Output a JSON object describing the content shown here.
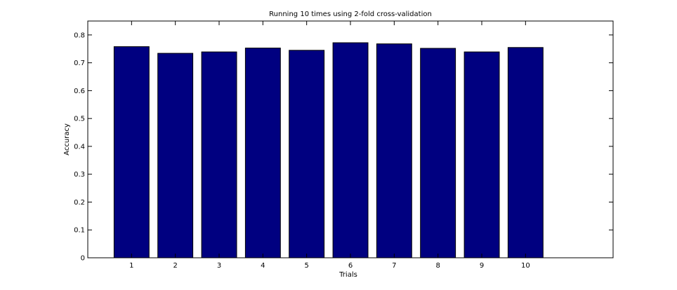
{
  "chart_data": {
    "type": "bar",
    "title": "Running 10 times using 2-fold cross-validation",
    "xlabel": "Trials",
    "ylabel": "Accuracy",
    "categories": [
      "1",
      "2",
      "3",
      "4",
      "5",
      "6",
      "7",
      "8",
      "9",
      "10"
    ],
    "values": [
      0.758,
      0.734,
      0.739,
      0.753,
      0.745,
      0.772,
      0.768,
      0.752,
      0.739,
      0.755
    ],
    "ylim": [
      0,
      0.85
    ],
    "yticks": [
      0,
      0.1,
      0.2,
      0.3,
      0.4,
      0.5,
      0.6,
      0.7,
      0.8
    ],
    "ytick_labels": [
      "0",
      "0.1",
      "0.2",
      "0.3",
      "0.4",
      "0.5",
      "0.6",
      "0.7",
      "0.8"
    ],
    "xlim": [
      0,
      12
    ],
    "bar_color": "#000080",
    "grid": false,
    "legend": "none"
  }
}
